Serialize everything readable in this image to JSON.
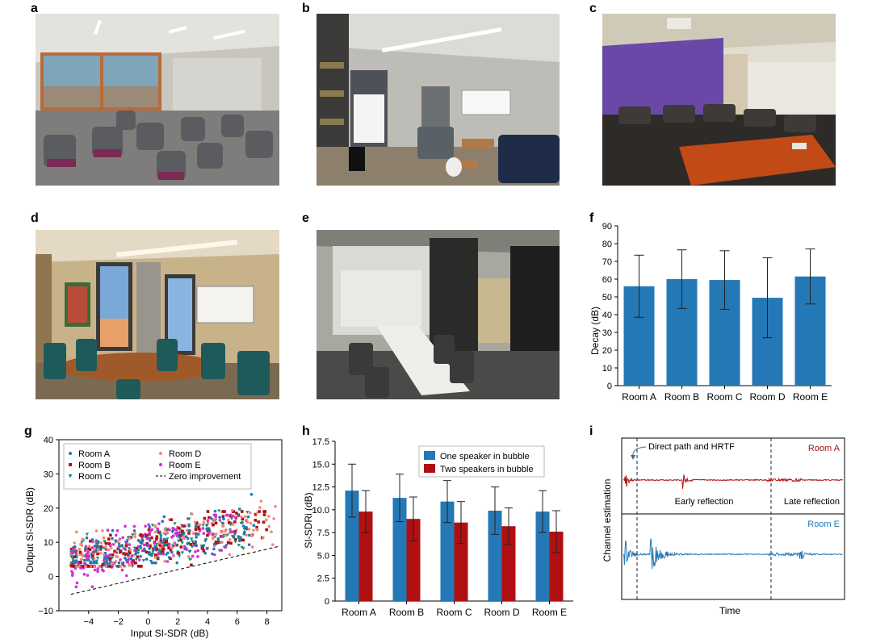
{
  "panel_labels": {
    "a": "a",
    "b": "b",
    "c": "c",
    "d": "d",
    "e": "e",
    "f": "f",
    "g": "g",
    "h": "h",
    "i": "i"
  },
  "colors": {
    "bar_blue": "#2478b5",
    "bar_red": "#b01012",
    "room_a": "#2478b5",
    "room_b": "#b01012",
    "room_c": "#1a8a78",
    "room_d": "#f08a72",
    "room_e": "#d030d8"
  },
  "chart_data": [
    {
      "panel": "f",
      "type": "bar",
      "xlabel": "",
      "ylabel": "Decay (dB)",
      "ylim": [
        0,
        90
      ],
      "yticks": [
        0,
        10,
        20,
        30,
        40,
        50,
        60,
        70,
        80,
        90
      ],
      "categories": [
        "Room A",
        "Room B",
        "Room C",
        "Room D",
        "Room E"
      ],
      "values": [
        56,
        60,
        59.5,
        49.5,
        61.5
      ],
      "error": [
        17.5,
        16.5,
        16.5,
        22.5,
        15.5
      ],
      "grid": false
    },
    {
      "panel": "g",
      "type": "scatter",
      "xlabel": "Input SI-SDR (dB)",
      "ylabel": "Output SI-SDR (dB)",
      "xlim": [
        -6,
        9
      ],
      "ylim": [
        -10,
        40
      ],
      "xticks": [
        -4,
        -2,
        0,
        2,
        4,
        6,
        8
      ],
      "yticks": [
        -10,
        0,
        10,
        20,
        30,
        40
      ],
      "legend_position": "top-left",
      "series": [
        {
          "name": "Room A",
          "marker": "circle",
          "x_range": [
            -5.2,
            7.2
          ],
          "y_range": [
            4,
            24
          ]
        },
        {
          "name": "Room B",
          "marker": "square",
          "x_range": [
            -5.2,
            8.0
          ],
          "y_range": [
            3,
            19
          ]
        },
        {
          "name": "Room C",
          "marker": "triangle-down",
          "x_range": [
            -5.2,
            6.8
          ],
          "y_range": [
            3,
            22
          ]
        },
        {
          "name": "Room D",
          "marker": "circle",
          "x_range": [
            -5.2,
            8.8
          ],
          "y_range": [
            3,
            23
          ]
        },
        {
          "name": "Room E",
          "marker": "circle",
          "x_range": [
            -5.2,
            6.0
          ],
          "y_range": [
            -3,
            18
          ]
        }
      ],
      "reference_line": {
        "name": "Zero improvement",
        "style": "dashed",
        "points": [
          [
            -5.2,
            -5.2
          ],
          [
            8.8,
            8.8
          ]
        ]
      }
    },
    {
      "panel": "h",
      "type": "bar",
      "xlabel": "",
      "ylabel": "SI-SDRi (dB)",
      "ylim": [
        0,
        17.5
      ],
      "yticks": [
        "0",
        "2.5",
        "5.0",
        "7.5",
        "10.0",
        "12.5",
        "15.0",
        "17.5"
      ],
      "categories": [
        "Room A",
        "Room B",
        "Room C",
        "Room D",
        "Room E"
      ],
      "legend_position": "top-right",
      "series": [
        {
          "name": "One speaker in bubble",
          "values": [
            12.1,
            11.3,
            10.9,
            9.9,
            9.8
          ],
          "error": [
            2.9,
            2.6,
            2.3,
            2.6,
            2.3
          ]
        },
        {
          "name": "Two speakers in bubble",
          "values": [
            9.8,
            9.0,
            8.6,
            8.2,
            7.6
          ],
          "error": [
            2.3,
            2.4,
            2.3,
            2.0,
            2.3
          ]
        }
      ]
    },
    {
      "panel": "i",
      "type": "line",
      "xlabel": "Time",
      "ylabel": "Channel estimation",
      "series": [
        {
          "name": "Room A"
        },
        {
          "name": "Room E"
        }
      ],
      "annotations": [
        "Direct path and HRTF",
        "Early reflection",
        "Late reflection"
      ],
      "ticks": false
    }
  ]
}
